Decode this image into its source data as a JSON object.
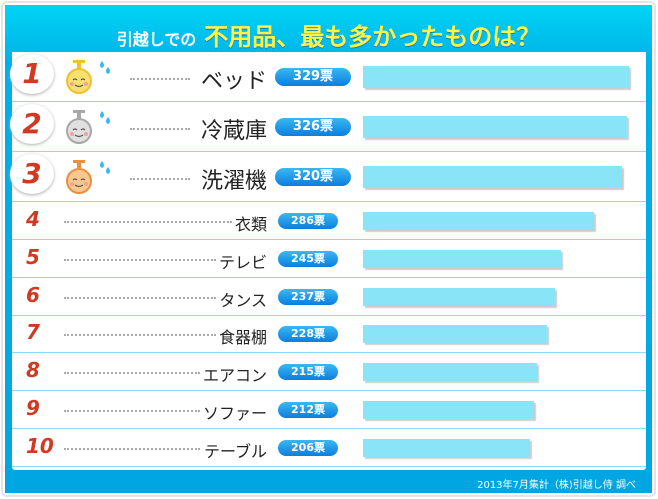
{
  "title": {
    "prefix": "引越しでの",
    "main": "不用品、最も多かったものは？"
  },
  "footer": "2013年7月集計（株)引越し侍 調べ",
  "chart_data": {
    "type": "bar",
    "orientation": "horizontal",
    "unit": "票",
    "categories": [
      "ベッド",
      "冷蔵庫",
      "洗濯機",
      "衣類",
      "テレビ",
      "タンス",
      "食器棚",
      "エアコン",
      "ソファー",
      "テーブル"
    ],
    "ranks": [
      "1",
      "2",
      "3",
      "4",
      "5",
      "6",
      "7",
      "8",
      "9",
      "10"
    ],
    "values": [
      329,
      326,
      320,
      286,
      245,
      237,
      228,
      215,
      212,
      206
    ],
    "value_labels": [
      "329票",
      "326票",
      "320票",
      "286票",
      "245票",
      "237票",
      "228票",
      "215票",
      "212票",
      "206票"
    ],
    "medals": [
      "gold",
      "silver",
      "bronze"
    ],
    "bar_color": "#88e4f6"
  }
}
